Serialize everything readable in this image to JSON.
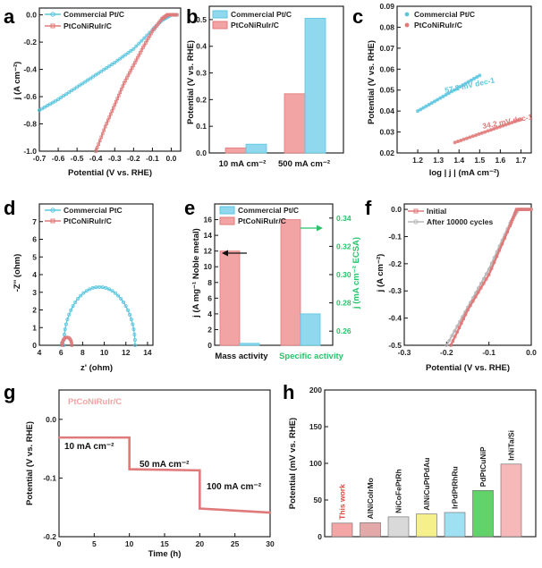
{
  "colors": {
    "commercial": "#5cc6df",
    "alloy": "#e07a7a",
    "alloy_fill": "#f2a3a3",
    "comm_fill": "#8fd8ee",
    "green": "#27c46b",
    "gray": "#b9b9b9",
    "bar_h": [
      "#f4a6a6",
      "#e3a8a8",
      "#d9d9d9",
      "#f5f08a",
      "#9fe0f2",
      "#62d36a",
      "#f6b8b8"
    ]
  },
  "chart_data": [
    {
      "id": "a",
      "type": "line",
      "panel_label": "a",
      "xlabel": "Potential (V vs. RHE)",
      "ylabel": "j (A cm⁻²)",
      "xlim": [
        -0.7,
        0.05
      ],
      "ylim": [
        -1.0,
        0.05
      ],
      "xticks": [
        "-0.7",
        "-0.6",
        "-0.5",
        "-0.4",
        "-0.3",
        "-0.2",
        "-0.1",
        "0.0"
      ],
      "yticks": [
        "-1.0",
        "-0.8",
        "-0.6",
        "-0.4",
        "-0.2",
        "0.0"
      ],
      "series": [
        {
          "name": "Commercial Pt/C",
          "x": [
            -0.7,
            -0.6,
            -0.5,
            -0.4,
            -0.3,
            -0.2,
            -0.1,
            -0.05,
            0.0,
            0.03
          ],
          "y": [
            -0.7,
            -0.62,
            -0.53,
            -0.44,
            -0.35,
            -0.25,
            -0.11,
            -0.04,
            0.0,
            0.0
          ]
        },
        {
          "name": "PtCoNiRuIr/C",
          "x": [
            -0.4,
            -0.35,
            -0.3,
            -0.25,
            -0.2,
            -0.15,
            -0.1,
            -0.05,
            -0.02,
            0.0,
            0.03
          ],
          "y": [
            -1.0,
            -0.82,
            -0.66,
            -0.5,
            -0.37,
            -0.24,
            -0.12,
            -0.03,
            0.0,
            0.0,
            0.0
          ]
        }
      ]
    },
    {
      "id": "b",
      "type": "bar",
      "panel_label": "b",
      "ylabel": "Potential (V vs. RHE)",
      "categories": [
        "10 mA cm⁻²",
        "500 mA cm⁻²"
      ],
      "ylim": [
        0,
        0.55
      ],
      "yticks": [
        "0.0",
        "0.1",
        "0.2",
        "0.3",
        "0.4",
        "0.5"
      ],
      "series": [
        {
          "name": "Commercial Pt/C",
          "values": [
            0.033,
            0.505
          ]
        },
        {
          "name": "PtCoNiRuIr/C",
          "values": [
            0.019,
            0.222
          ]
        }
      ]
    },
    {
      "id": "c",
      "type": "scatter",
      "panel_label": "c",
      "xlabel": "log | j | (mA cm⁻²)",
      "ylabel": "Potential (V vs. RHE)",
      "xlim": [
        1.1,
        1.75
      ],
      "ylim": [
        0.02,
        0.09
      ],
      "xticks": [
        "1.2",
        "1.3",
        "1.4",
        "1.5",
        "1.6",
        "1.7"
      ],
      "yticks": [
        "0.02",
        "0.03",
        "0.04",
        "0.05",
        "0.06",
        "0.07",
        "0.08",
        "0.09"
      ],
      "annotations": [
        "57.2 mV dec-1",
        "34.2 mV dec-1"
      ],
      "series": [
        {
          "name": "Commercial Pt/C",
          "x": [
            1.2,
            1.5
          ],
          "y": [
            0.04,
            0.057
          ]
        },
        {
          "name": "PtCoNiRuIr/C",
          "x": [
            1.38,
            1.7
          ],
          "y": [
            0.025,
            0.036
          ]
        }
      ]
    },
    {
      "id": "d",
      "type": "scatter",
      "panel_label": "d",
      "xlabel": "z' (ohm)",
      "ylabel": "-Z'' (ohm)",
      "xlim": [
        4,
        14.5
      ],
      "ylim": [
        0,
        8
      ],
      "xticks": [
        "4",
        "6",
        "8",
        "10",
        "12",
        "14"
      ],
      "yticks": [
        "0",
        "1",
        "2",
        "3",
        "4",
        "5",
        "6",
        "7"
      ],
      "series": [
        {
          "name": "Commercial PtC",
          "center": [
            9.55
          ],
          "radius": [
            3.3
          ]
        },
        {
          "name": "PtCoNiRuIr/C",
          "center": [
            6.55
          ],
          "radius": [
            0.45
          ]
        }
      ]
    },
    {
      "id": "e",
      "type": "bar",
      "panel_label": "e",
      "categories": [
        "Mass activity",
        "Specific activity"
      ],
      "ylabel": "j (A mg⁻¹ Noble metal)",
      "y2label": "j (mA cm⁻² ECSA)",
      "ylim": [
        0,
        18
      ],
      "y2lim": [
        0.25,
        0.35
      ],
      "yticks": [
        "0",
        "2",
        "4",
        "6",
        "8",
        "10",
        "12",
        "14",
        "16"
      ],
      "y2ticks": [
        "0.26",
        "0.28",
        "0.30",
        "0.32",
        "0.34"
      ],
      "series": [
        {
          "name": "Commercial Pt/C",
          "values": [
            0.25,
            4.0
          ]
        },
        {
          "name": "PtCoNiRuIr/C",
          "values": [
            12.0,
            16.0
          ]
        }
      ]
    },
    {
      "id": "f",
      "type": "line",
      "panel_label": "f",
      "xlabel": "Potential (V vs. RHE)",
      "ylabel": "j (A cm⁻²)",
      "xlim": [
        -0.3,
        0.0
      ],
      "ylim": [
        -0.5,
        0.02
      ],
      "xticks": [
        "-0.3",
        "-0.2",
        "-0.1",
        "0.0"
      ],
      "yticks": [
        "-0.5",
        "-0.4",
        "-0.3",
        "-0.2",
        "-0.1",
        "0.0"
      ],
      "series": [
        {
          "name": "Initial",
          "x": [
            -0.19,
            -0.15,
            -0.1,
            -0.05,
            -0.035,
            -0.02,
            0.0
          ],
          "y": [
            -0.5,
            -0.37,
            -0.24,
            -0.06,
            0.0,
            0.0,
            0.0
          ]
        },
        {
          "name": "After 10000 cycles",
          "x": [
            -0.2,
            -0.15,
            -0.1,
            -0.05,
            -0.03,
            -0.015,
            0.0
          ],
          "y": [
            -0.5,
            -0.36,
            -0.22,
            -0.05,
            0.0,
            0.0,
            0.0
          ]
        }
      ]
    },
    {
      "id": "g",
      "type": "line",
      "panel_label": "g",
      "title": "PtCoNiRuIr/C",
      "xlabel": "Time (h)",
      "ylabel": "Potential (V vs. RHE)",
      "xlim": [
        0,
        30
      ],
      "ylim": [
        -0.2,
        0.05
      ],
      "xticks": [
        "0",
        "5",
        "10",
        "15",
        "20",
        "25",
        "30"
      ],
      "yticks": [
        "-0.2",
        "-0.1",
        "0.0"
      ],
      "annotations": [
        "10 mA cm⁻²",
        "50 mA cm⁻²",
        "100 mA cm⁻²"
      ],
      "series": [
        {
          "name": "PtCoNiRuIr/C",
          "x": [
            0,
            10,
            10,
            20,
            20,
            30
          ],
          "y": [
            -0.031,
            -0.031,
            -0.085,
            -0.087,
            -0.152,
            -0.159
          ]
        }
      ]
    },
    {
      "id": "h",
      "type": "bar",
      "panel_label": "h",
      "ylabel": "Potential (mV vs. RHE)",
      "ylim": [
        0,
        200
      ],
      "yticks": [
        "0",
        "50",
        "100",
        "150",
        "200"
      ],
      "categories": [
        "This work",
        "AlNiCoIrMo",
        "NiCoFePtRh",
        "AlNiCuPtPdAu",
        "IrPdPtRhRu",
        "PdPtCuNiP",
        "IrNiTa/Si"
      ],
      "values": [
        18.5,
        19,
        27,
        31,
        33,
        63,
        99
      ]
    }
  ]
}
